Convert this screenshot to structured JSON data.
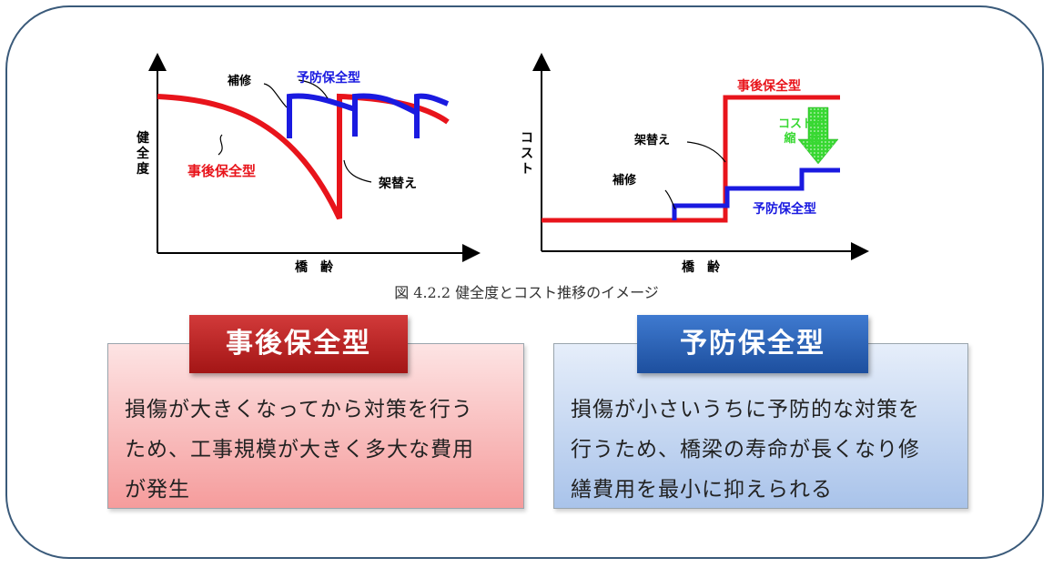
{
  "colors": {
    "corrective": "#e8141b",
    "preventive": "#1a1ae0",
    "cost_reduction": "#38d832",
    "frame": "#3a5a7a"
  },
  "caption": "図 4.2.2 健全度とコスト推移のイメージ",
  "chart_data": [
    {
      "type": "line",
      "ylabel": "健全度",
      "xlabel": "橋　齢",
      "annotations": [
        "補修",
        "予防保全型",
        "事後保全型",
        "架替え"
      ],
      "series": [
        {
          "name": "事後保全型",
          "color": "#e8141b",
          "values": "high, declining, sudden replacement then declining again"
        },
        {
          "name": "予防保全型",
          "color": "#1a1ae0",
          "values": "sawtooth: decline then repair back up three times"
        }
      ]
    },
    {
      "type": "line",
      "ylabel": "コスト",
      "xlabel": "橋　齢",
      "annotations": [
        "事後保全型",
        "架替え",
        "補修",
        "予防保全型",
        "コストの縮　減"
      ],
      "series": [
        {
          "name": "事後保全型",
          "color": "#e8141b",
          "values": "low flat, then a single large step up at replacement"
        },
        {
          "name": "予防保全型",
          "color": "#1a1ae0",
          "values": "low flat with three small stepwise increases"
        }
      ]
    }
  ],
  "left_panel": {
    "title": "事後保全型",
    "lines": [
      "損傷が大きくなってから対策を行う",
      "ため、工事規模が大きく多大な費用",
      "が発生"
    ]
  },
  "right_panel": {
    "title": "予防保全型",
    "lines": [
      "損傷が小さいうちに予防的な対策を",
      "行うため、橋梁の寿命が長くなり修",
      "繕費用を最小に抑えられる"
    ]
  }
}
